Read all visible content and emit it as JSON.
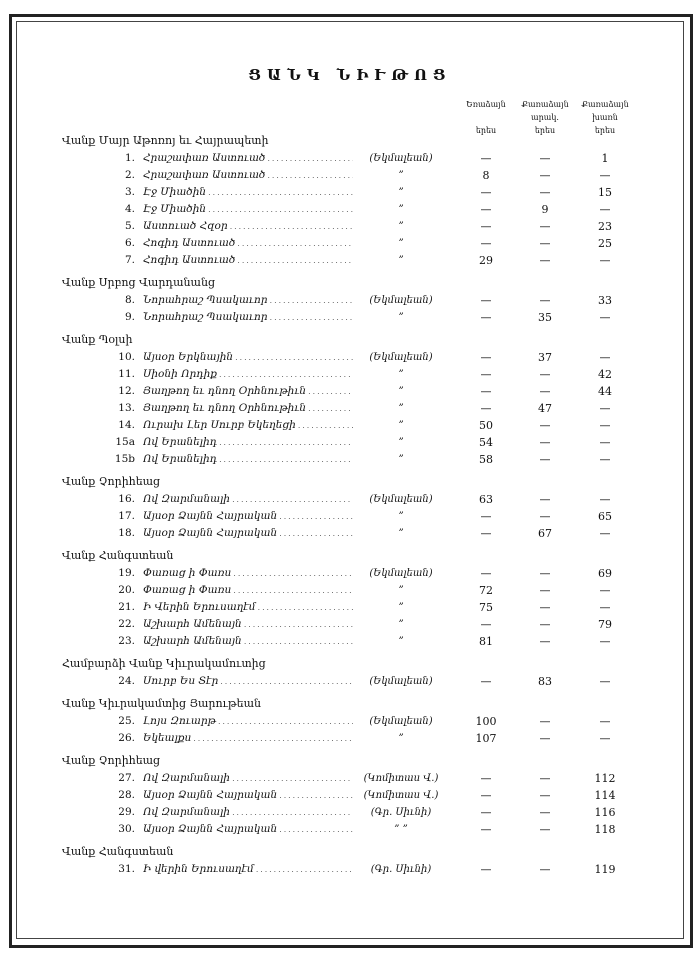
{
  "title": "ՑԱՆԿ ՆԻՒԹՈՑ",
  "columns": [
    {
      "line1": "Եռաձայն",
      "line2": "",
      "line3": "երես"
    },
    {
      "line1": "Քառաձայն",
      "line2": "արակ.",
      "line3": "երես"
    },
    {
      "line1": "Քառաձայն",
      "line2": "խառն",
      "line3": "երես"
    }
  ],
  "sections": [
    {
      "title": "Վանք Մայր Աթոռոյ եւ Հայրապետի",
      "rows": [
        {
          "num": "1.",
          "name": "Հրաշափառ Աստուած",
          "composer": "(Եկմալեան)",
          "values": [
            "—",
            "—",
            "1"
          ]
        },
        {
          "num": "2.",
          "name": "Հրաշափառ Աստուած",
          "composer": "”",
          "values": [
            "8",
            "—",
            "—"
          ]
        },
        {
          "num": "3.",
          "name": "Էջ Միածին",
          "composer": "”",
          "values": [
            "—",
            "—",
            "15"
          ]
        },
        {
          "num": "4.",
          "name": "Էջ Միածին",
          "composer": "”",
          "values": [
            "—",
            "9",
            "—"
          ]
        },
        {
          "num": "5.",
          "name": "Աստուած Հզօր",
          "composer": "”",
          "values": [
            "—",
            "—",
            "23"
          ]
        },
        {
          "num": "6.",
          "name": "Հոգիդ Աստուած",
          "composer": "”",
          "values": [
            "—",
            "—",
            "25"
          ]
        },
        {
          "num": "7.",
          "name": "Հոգիդ Աստուած",
          "composer": "”",
          "values": [
            "29",
            "—",
            "—"
          ]
        }
      ]
    },
    {
      "title": "Վանք Սրբոց Վարդանանց",
      "rows": [
        {
          "num": "8.",
          "name": "Նորահրաշ Պսակաւոր",
          "composer": "(Եկմալեան)",
          "values": [
            "—",
            "—",
            "33"
          ]
        },
        {
          "num": "9.",
          "name": "Նորահրաշ Պսակաւոր",
          "composer": "”",
          "values": [
            "—",
            "35",
            "—"
          ]
        }
      ]
    },
    {
      "title": "Վանք Պօլսի",
      "rows": [
        {
          "num": "10.",
          "name": "Այսօր Երկնային",
          "composer": "(Եկմալեան)",
          "values": [
            "—",
            "37",
            "—"
          ]
        },
        {
          "num": "11.",
          "name": "Սիօնի Որդիք",
          "composer": "”",
          "values": [
            "—",
            "—",
            "42"
          ]
        },
        {
          "num": "12.",
          "name": "Յաղթող եւ դնող Օրհնութիւն",
          "composer": "”",
          "values": [
            "—",
            "—",
            "44"
          ]
        },
        {
          "num": "13.",
          "name": "Յաղթող եւ դնող Օրհնութիւն",
          "composer": "”",
          "values": [
            "—",
            "47",
            "—"
          ]
        },
        {
          "num": "14.",
          "name": "Ուրախ Լեր Սուրբ Եկեղեցի",
          "composer": "”",
          "values": [
            "50",
            "—",
            "—"
          ]
        },
        {
          "num": "15a",
          "name": "Ով Երանելիդ",
          "composer": "”",
          "values": [
            "54",
            "—",
            "—"
          ]
        },
        {
          "num": "15b",
          "name": "Ով Երանելիդ",
          "composer": "”",
          "values": [
            "58",
            "—",
            "—"
          ]
        }
      ]
    },
    {
      "title": "Վանք Չորիհեաց",
      "rows": [
        {
          "num": "16.",
          "name": "Ով Զարմանալի",
          "composer": "(Եկմալեան)",
          "values": [
            "63",
            "—",
            "—"
          ]
        },
        {
          "num": "17.",
          "name": "Այսօր Ձայնն Հայրական",
          "composer": "”",
          "values": [
            "—",
            "—",
            "65"
          ]
        },
        {
          "num": "18.",
          "name": "Այսօր Ձայնն Հայրական",
          "composer": "”",
          "values": [
            "—",
            "67",
            "—"
          ]
        }
      ]
    },
    {
      "title": "Վանք Հանգստեան",
      "rows": [
        {
          "num": "19.",
          "name": "Փառաց ի Փառս",
          "composer": "(Եկմալեան)",
          "values": [
            "—",
            "—",
            "69"
          ]
        },
        {
          "num": "20.",
          "name": "Փառաց ի Փառս",
          "composer": "”",
          "values": [
            "72",
            "—",
            "—"
          ]
        },
        {
          "num": "21.",
          "name": "Ի Վերին Երուսաղէմ",
          "composer": "”",
          "values": [
            "75",
            "—",
            "—"
          ]
        },
        {
          "num": "22.",
          "name": "Աշխարհ Ամենայն",
          "composer": "”",
          "values": [
            "—",
            "—",
            "79"
          ]
        },
        {
          "num": "23.",
          "name": "Աշխարհ Ամենայն",
          "composer": "”",
          "values": [
            "81",
            "—",
            "—"
          ]
        }
      ]
    },
    {
      "title": "Համբարձի Վանք Կիւրակամուտից",
      "rows": [
        {
          "num": "24.",
          "name": "Սուրբ Ես Տէր",
          "composer": "(Եկմալեան)",
          "values": [
            "—",
            "83",
            "—"
          ]
        }
      ]
    },
    {
      "title": "Վանք Կիւրակամտից Յարութեան",
      "rows": [
        {
          "num": "25.",
          "name": "Լոյս Զուարթ",
          "composer": "(Եկմալեան)",
          "values": [
            "100",
            "—",
            "—"
          ]
        },
        {
          "num": "26.",
          "name": "Եկեալքս",
          "composer": "”",
          "values": [
            "107",
            "—",
            "—"
          ]
        }
      ]
    },
    {
      "title": "Վանք Չորիհեաց",
      "rows": [
        {
          "num": "27.",
          "name": "Ով Զարմանալի",
          "composer": "(Կոմիտաս Վ.)",
          "values": [
            "—",
            "—",
            "112"
          ]
        },
        {
          "num": "28.",
          "name": "Այսօր Ձայնն Հայրական",
          "composer": "(Կոմիտաս Վ.)",
          "values": [
            "—",
            "—",
            "114"
          ]
        },
        {
          "num": "29.",
          "name": "Ով Զարմանալի",
          "composer": "(Գր. Սիւնի)",
          "values": [
            "—",
            "—",
            "116"
          ]
        },
        {
          "num": "30.",
          "name": "Այսօր Ձայնն Հայրական",
          "composer": "”    ”",
          "values": [
            "—",
            "—",
            "118"
          ]
        }
      ]
    },
    {
      "title": "Վանք Հանգստեան",
      "rows": [
        {
          "num": "31.",
          "name": "Ի վերին Երուսաղէմ",
          "composer": "(Գր. Սիւնի)",
          "values": [
            "—",
            "—",
            "119"
          ]
        }
      ]
    }
  ]
}
